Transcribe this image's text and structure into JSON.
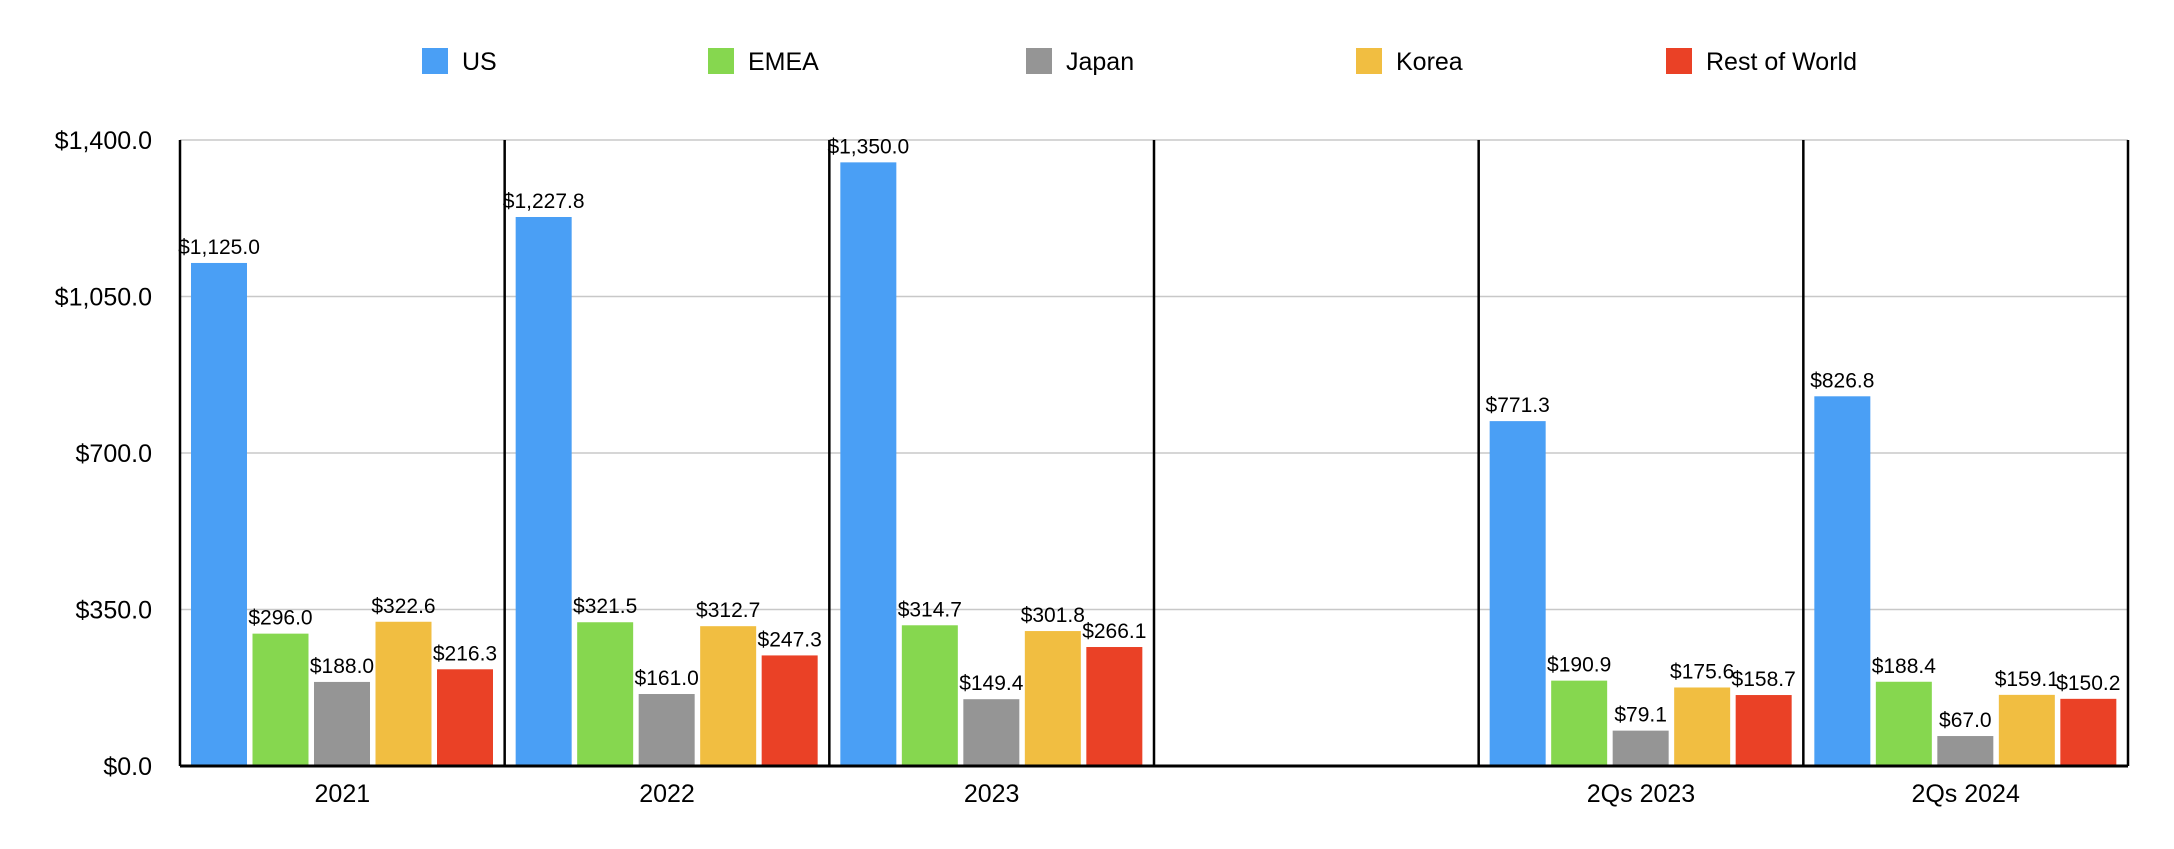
{
  "chart_data": {
    "type": "bar",
    "title": "",
    "xlabel": "",
    "ylabel": "",
    "ylim": [
      0,
      1400
    ],
    "y_ticks": [
      0,
      350,
      700,
      1050,
      1400
    ],
    "y_tick_labels": [
      "$0.0",
      "$350.0",
      "$700.0",
      "$1,050.0",
      "$1,400.0"
    ],
    "grid": true,
    "legend_position": "top",
    "categories": [
      "2021",
      "2022",
      "2023",
      "",
      "2Qs 2023",
      "2Qs 2024"
    ],
    "series": [
      {
        "name": "US",
        "color": "#4A9FF5",
        "values": [
          1125.0,
          1227.8,
          1350.0,
          null,
          771.3,
          826.8
        ],
        "labels": [
          "$1,125.0",
          "$1,227.8",
          "$1,350.0",
          "",
          "$771.3",
          "$826.8"
        ]
      },
      {
        "name": "EMEA",
        "color": "#86D74F",
        "values": [
          296.0,
          321.5,
          314.7,
          null,
          190.9,
          188.4
        ],
        "labels": [
          "$296.0",
          "$321.5",
          "$314.7",
          "",
          "$190.9",
          "$188.4"
        ]
      },
      {
        "name": "Japan",
        "color": "#959595",
        "values": [
          188.0,
          161.0,
          149.4,
          null,
          79.1,
          67.0
        ],
        "labels": [
          "$188.0",
          "$161.0",
          "$149.4",
          "",
          "$79.1",
          "$67.0"
        ]
      },
      {
        "name": "Korea",
        "color": "#F1BE41",
        "values": [
          322.6,
          312.7,
          301.8,
          null,
          175.6,
          159.1
        ],
        "labels": [
          "$322.6",
          "$312.7",
          "$301.8",
          "",
          "$175.6",
          "$159.1"
        ]
      },
      {
        "name": "Rest of World",
        "color": "#EA4126",
        "values": [
          216.3,
          247.3,
          266.1,
          null,
          158.7,
          150.2
        ],
        "labels": [
          "$216.3",
          "$247.3",
          "$266.1",
          "",
          "$158.7",
          "$150.2"
        ]
      }
    ]
  }
}
